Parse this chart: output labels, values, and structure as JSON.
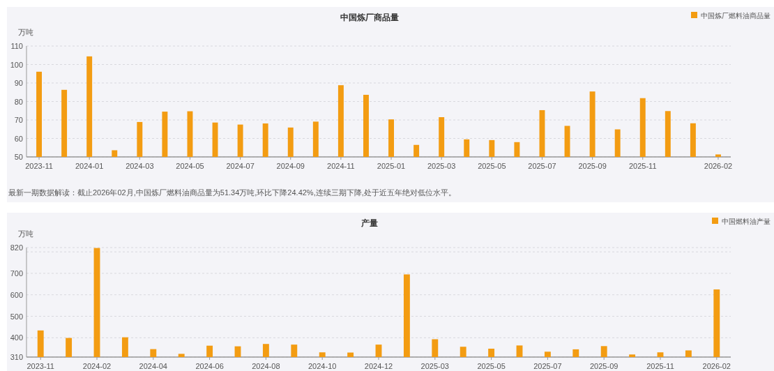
{
  "chart_data": [
    {
      "type": "bar",
      "title": "中国炼厂商品量",
      "ylabel": "万吨",
      "categories": [
        "2023-11",
        null,
        "2024-01",
        null,
        "2024-03",
        null,
        "2024-05",
        null,
        "2024-07",
        null,
        "2024-09",
        null,
        "2024-11",
        null,
        "2025-01",
        null,
        "2025-03",
        null,
        "2025-05",
        null,
        "2025-07",
        null,
        "2025-09",
        null,
        "2025-11",
        null,
        null,
        "2026-02"
      ],
      "series": [
        {
          "name": "中国炼厂燃料油商品量",
          "color": "#f39c12",
          "values": [
            96.1,
            86.3,
            104.4,
            53.6,
            68.9,
            74.5,
            74.7,
            68.6,
            67.5,
            68.1,
            65.9,
            69.1,
            88.8,
            83.6,
            70.3,
            56.5,
            71.5,
            59.5,
            59.1,
            58,
            75.3,
            66.8,
            85.4,
            64.9,
            81.8,
            74.8,
            68.2,
            51.34
          ]
        }
      ],
      "ylim": [
        50,
        110
      ],
      "yticks": [
        50,
        60,
        70,
        80,
        90,
        100,
        110
      ],
      "grid": "y",
      "legend": "top right",
      "annotations": [
        "最新一期数据解读：截止2026年02月,中国炼厂燃料油商品量为51.34万吨,环比下降24.42%,连续三期下降,处于近五年绝对低位水平。"
      ]
    },
    {
      "type": "bar",
      "title": "产量",
      "ylabel": "万吨",
      "categories": [
        "2023-11",
        null,
        "2024-02",
        null,
        "2024-04",
        null,
        "2024-06",
        null,
        "2024-08",
        null,
        "2024-10",
        null,
        "2024-12",
        null,
        "2025-03",
        null,
        "2025-05",
        null,
        "2025-07",
        null,
        "2025-09",
        null,
        "2025-11",
        null,
        "2026-02"
      ],
      "series": [
        {
          "name": "中国燃料油产量",
          "color": "#f39c12",
          "values": [
            434,
            399,
            818,
            402,
            347,
            325,
            363,
            360,
            371,
            368,
            332,
            331,
            368,
            695,
            393,
            358,
            349,
            364,
            335,
            346,
            361,
            322,
            332,
            341,
            625
          ]
        }
      ],
      "ylim": [
        310,
        820
      ],
      "yticks": [
        310,
        400,
        500,
        600,
        700,
        {
          "value": 800,
          "label": null
        },
        820
      ],
      "grid": "y",
      "legend": "top right"
    }
  ]
}
